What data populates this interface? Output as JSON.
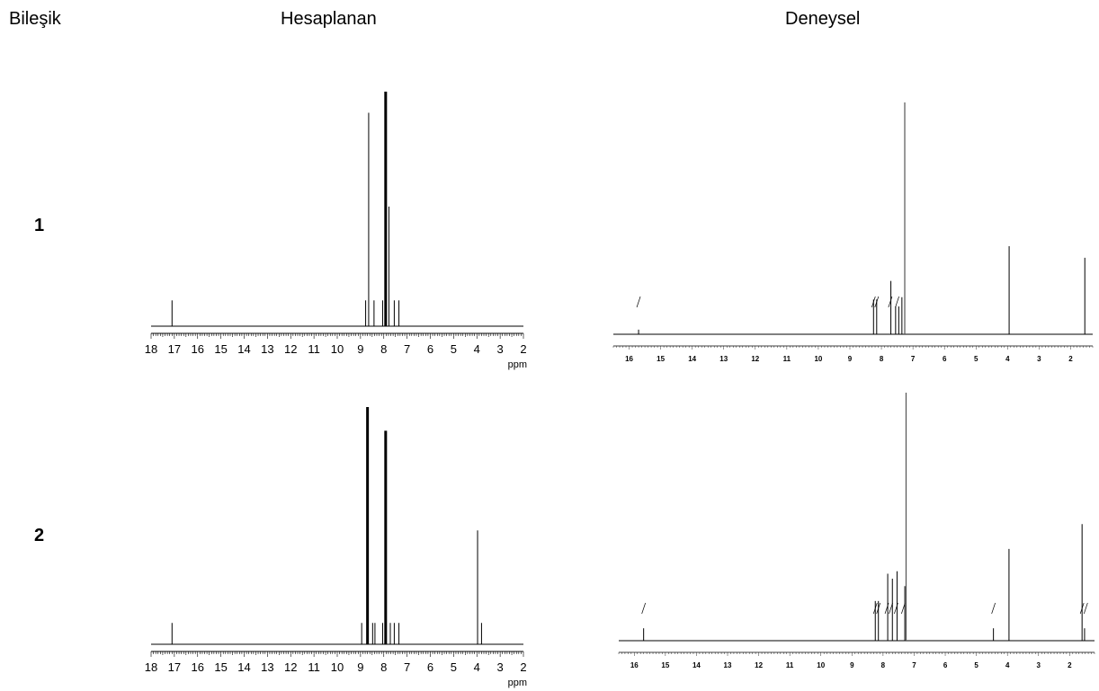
{
  "headers": {
    "compound": "Bileşik",
    "calculated": "Hesaplanan",
    "experimental": "Deneysel"
  },
  "compounds": [
    "1",
    "2"
  ],
  "chart_data": [
    {
      "type": "bar",
      "panel": "calc-1",
      "xlabel": "ppm",
      "xlim": [
        18,
        2
      ],
      "ticks": [
        18,
        17,
        16,
        15,
        14,
        13,
        12,
        11,
        10,
        9,
        8,
        7,
        6,
        5,
        4,
        3,
        2
      ],
      "peaks": [
        {
          "x": 17.1,
          "y": 0.11
        },
        {
          "x": 8.78,
          "y": 0.11
        },
        {
          "x": 8.65,
          "y": 0.91
        },
        {
          "x": 8.42,
          "y": 0.11
        },
        {
          "x": 8.05,
          "y": 0.11
        },
        {
          "x": 7.92,
          "y": 1.0,
          "bold": true
        },
        {
          "x": 7.78,
          "y": 0.51
        },
        {
          "x": 7.55,
          "y": 0.11
        },
        {
          "x": 7.35,
          "y": 0.11
        }
      ]
    },
    {
      "type": "line",
      "panel": "exp-1",
      "xlim": [
        16.5,
        1.3
      ],
      "ticks": [
        16,
        15,
        14,
        13,
        12,
        11,
        10,
        9,
        8,
        7,
        6,
        5,
        4,
        3,
        2
      ],
      "peaks": [
        {
          "x": 15.7,
          "y": 0.02
        },
        {
          "x": 8.25,
          "y": 0.15
        },
        {
          "x": 8.15,
          "y": 0.15
        },
        {
          "x": 7.7,
          "y": 0.23
        },
        {
          "x": 7.55,
          "y": 0.12
        },
        {
          "x": 7.45,
          "y": 0.12
        },
        {
          "x": 7.26,
          "y": 1.0
        },
        {
          "x": 7.35,
          "y": 0.16
        },
        {
          "x": 3.95,
          "y": 0.38
        },
        {
          "x": 1.55,
          "y": 0.33
        }
      ],
      "integral_marks": [
        15.7,
        8.25,
        8.15,
        7.72,
        7.5
      ]
    },
    {
      "type": "bar",
      "panel": "calc-2",
      "xlabel": "ppm",
      "xlim": [
        18,
        2
      ],
      "ticks": [
        18,
        17,
        16,
        15,
        14,
        13,
        12,
        11,
        10,
        9,
        8,
        7,
        6,
        5,
        4,
        3,
        2
      ],
      "peaks": [
        {
          "x": 17.1,
          "y": 0.09
        },
        {
          "x": 8.95,
          "y": 0.09
        },
        {
          "x": 8.7,
          "y": 1.0,
          "bold": true
        },
        {
          "x": 8.48,
          "y": 0.09
        },
        {
          "x": 8.38,
          "y": 0.09
        },
        {
          "x": 8.05,
          "y": 0.09
        },
        {
          "x": 7.92,
          "y": 0.9,
          "bold": true
        },
        {
          "x": 7.72,
          "y": 0.09
        },
        {
          "x": 7.55,
          "y": 0.09
        },
        {
          "x": 7.35,
          "y": 0.09
        },
        {
          "x": 3.97,
          "y": 0.48
        },
        {
          "x": 3.8,
          "y": 0.09
        }
      ]
    },
    {
      "type": "line",
      "panel": "exp-2",
      "xlim": [
        16.5,
        1.2
      ],
      "ticks": [
        16,
        15,
        14,
        13,
        12,
        11,
        10,
        9,
        8,
        7,
        6,
        5,
        4,
        3,
        2
      ],
      "peaks": [
        {
          "x": 15.7,
          "y": 0.05
        },
        {
          "x": 8.25,
          "y": 0.16
        },
        {
          "x": 8.15,
          "y": 0.16
        },
        {
          "x": 7.85,
          "y": 0.27
        },
        {
          "x": 7.7,
          "y": 0.25
        },
        {
          "x": 7.55,
          "y": 0.28
        },
        {
          "x": 7.3,
          "y": 0.22
        },
        {
          "x": 7.26,
          "y": 1.0
        },
        {
          "x": 4.45,
          "y": 0.05
        },
        {
          "x": 3.95,
          "y": 0.37
        },
        {
          "x": 1.6,
          "y": 0.47
        },
        {
          "x": 1.52,
          "y": 0.05
        }
      ],
      "integral_marks": [
        15.7,
        8.25,
        8.15,
        7.88,
        7.75,
        7.58,
        7.35,
        4.45,
        1.6,
        1.48
      ]
    }
  ]
}
